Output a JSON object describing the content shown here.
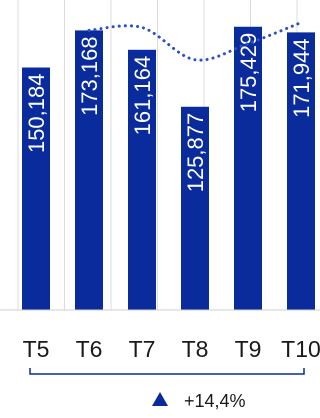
{
  "chart_data": {
    "type": "bar",
    "categories": [
      "T5",
      "T6",
      "T7",
      "T8",
      "T9",
      "T10"
    ],
    "values": [
      150184,
      173168,
      161164,
      125877,
      175429,
      171944
    ],
    "value_labels": [
      "150,184",
      "173,168",
      "161,164",
      "125,877",
      "175,429",
      "171,944"
    ],
    "ylim": [
      0,
      192000
    ],
    "trend_line": {
      "style": "dotted",
      "values": [
        null,
        173168,
        175000,
        155000,
        165000,
        178000
      ]
    },
    "bar_color": "#0a2b9c",
    "grid": "vertical",
    "annotation": {
      "marker": "up-triangle",
      "text": "+14,4%"
    }
  }
}
